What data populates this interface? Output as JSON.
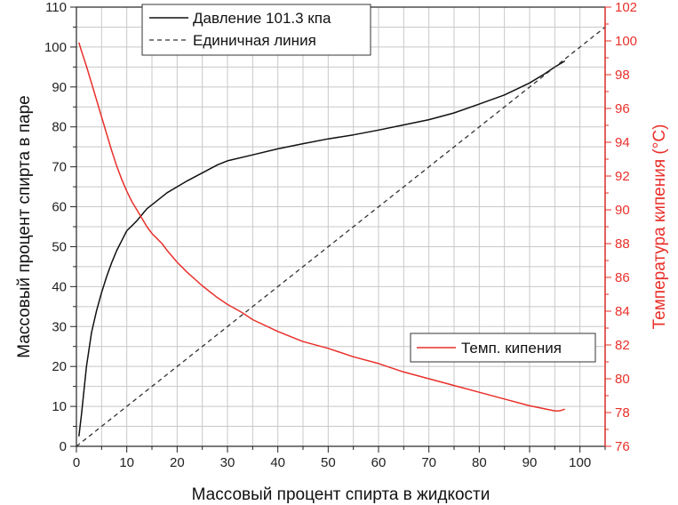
{
  "chart_data": {
    "type": "line",
    "xlabel": "Массовый процент спирта в жидкости",
    "ylabel": "Массовый процент спирта в паре",
    "y2label": "Температура кипения (°C)",
    "xlim": [
      0,
      105
    ],
    "ylim": [
      0,
      110
    ],
    "y2lim": [
      76,
      102
    ],
    "x_ticks": [
      0,
      10,
      20,
      30,
      40,
      50,
      60,
      70,
      80,
      90,
      100
    ],
    "y_ticks": [
      0,
      10,
      20,
      30,
      40,
      50,
      60,
      70,
      80,
      90,
      100,
      110
    ],
    "y2_ticks": [
      76,
      78,
      80,
      82,
      84,
      86,
      88,
      90,
      92,
      94,
      96,
      98,
      100,
      102
    ],
    "grid": true,
    "colors": {
      "vapor": "#111111",
      "unit": "#333333",
      "boiling": "#e8302a",
      "right_axis": "#e8302a",
      "grid": "#c8c8c8"
    },
    "series": [
      {
        "name": "Давление 101.3 кпа",
        "axis": "left",
        "style": "solid",
        "x": [
          0.5,
          1,
          2,
          3,
          4,
          5,
          6,
          7,
          8,
          9,
          10,
          11,
          12,
          13,
          14,
          15,
          16,
          18,
          20,
          22,
          25,
          28,
          30,
          35,
          40,
          45,
          50,
          55,
          60,
          65,
          70,
          75,
          80,
          85,
          90,
          93,
          95,
          97
        ],
        "y": [
          2.5,
          8,
          20,
          28.5,
          34,
          38.5,
          42.5,
          46,
          49,
          51.5,
          54,
          55.2,
          56.5,
          58,
          59.5,
          60.5,
          61.5,
          63.5,
          65,
          66.5,
          68.5,
          70.5,
          71.5,
          73,
          74.5,
          75.8,
          77,
          78,
          79.2,
          80.5,
          81.8,
          83.5,
          85.7,
          88,
          91,
          93.3,
          95,
          96.5
        ]
      },
      {
        "name": "Единичная линия",
        "axis": "left",
        "style": "dashed",
        "x": [
          0,
          105
        ],
        "y": [
          0,
          105
        ]
      },
      {
        "name": "Темп. кипения",
        "axis": "right",
        "style": "solid",
        "x": [
          0.5,
          1,
          2,
          3,
          4,
          5,
          6,
          7,
          8,
          9,
          10,
          11,
          12,
          13,
          14,
          15,
          16,
          17,
          18,
          20,
          22,
          25,
          28,
          30,
          33,
          35,
          40,
          45,
          50,
          55,
          60,
          65,
          70,
          75,
          80,
          85,
          90,
          95,
          96,
          97
        ],
        "y": [
          99.9,
          99.4,
          98.5,
          97.5,
          96.5,
          95.5,
          94.5,
          93.5,
          92.6,
          91.8,
          91.1,
          90.5,
          90,
          89.5,
          89,
          88.6,
          88.3,
          88,
          87.6,
          86.9,
          86.3,
          85.5,
          84.8,
          84.4,
          83.9,
          83.5,
          82.8,
          82.2,
          81.8,
          81.3,
          80.9,
          80.4,
          80,
          79.6,
          79.2,
          78.8,
          78.4,
          78.1,
          78.1,
          78.2
        ]
      }
    ],
    "legends": [
      {
        "placement": "top-center",
        "entries": [
          "Давление 101.3 кпа",
          "Единичная линия"
        ]
      },
      {
        "placement": "bottom-right",
        "entries": [
          "Темп. кипения"
        ]
      }
    ]
  }
}
